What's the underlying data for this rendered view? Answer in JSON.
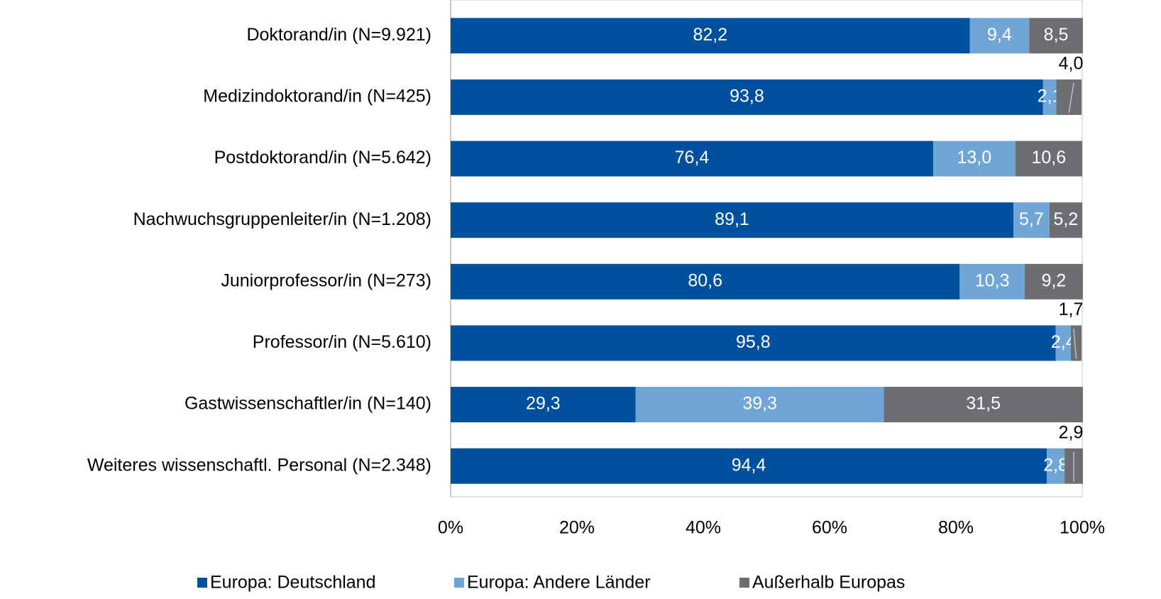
{
  "chart_data": {
    "type": "stacked-barh",
    "categories": [
      "Doktorand/in (N=9.921)",
      "Medizindoktorand/in (N=425)",
      "Postdoktorand/in (N=5.642)",
      "Nachwuchsgruppenleiter/in (N=1.208)",
      "Juniorprofessor/in (N=273)",
      "Professor/in (N=5.610)",
      "Gastwissenschaftler/in (N=140)",
      "Weiteres wissenschaftl. Personal (N=2.348)"
    ],
    "series": [
      {
        "name": "Europa: Deutschland",
        "color": "#0050a0",
        "values": [
          82.2,
          93.8,
          76.4,
          89.1,
          80.6,
          95.8,
          29.3,
          94.4
        ],
        "value_labels": [
          "82,2",
          "93,8",
          "76,4",
          "89,1",
          "80,6",
          "95,8",
          "29,3",
          "94,4"
        ]
      },
      {
        "name": "Europa: Andere Länder",
        "color": "#6fa6d6",
        "values": [
          9.4,
          2.1,
          13.0,
          5.7,
          10.3,
          2.4,
          39.3,
          2.8
        ],
        "value_labels": [
          "9,4",
          "2,1",
          "13,0",
          "5,7",
          "10,3",
          "2,4",
          "39,3",
          "2,8"
        ]
      },
      {
        "name": "Außerhalb Europas",
        "color": "#6d6e71",
        "values": [
          8.5,
          4.0,
          10.6,
          5.2,
          9.2,
          1.7,
          31.5,
          2.9
        ],
        "value_labels": [
          "8,5",
          "4,0",
          "10,6",
          "5,2",
          "9,2",
          "1,7",
          "31,5",
          "2,9"
        ]
      }
    ],
    "xlim": [
      0,
      100
    ],
    "xticks": [
      {
        "value": 0,
        "label": "0%"
      },
      {
        "value": 20,
        "label": "20%"
      },
      {
        "value": 40,
        "label": "40%"
      },
      {
        "value": 60,
        "label": "60%"
      },
      {
        "value": 80,
        "label": "80%"
      },
      {
        "value": 100,
        "label": "100%"
      }
    ],
    "legend": "bottom"
  }
}
